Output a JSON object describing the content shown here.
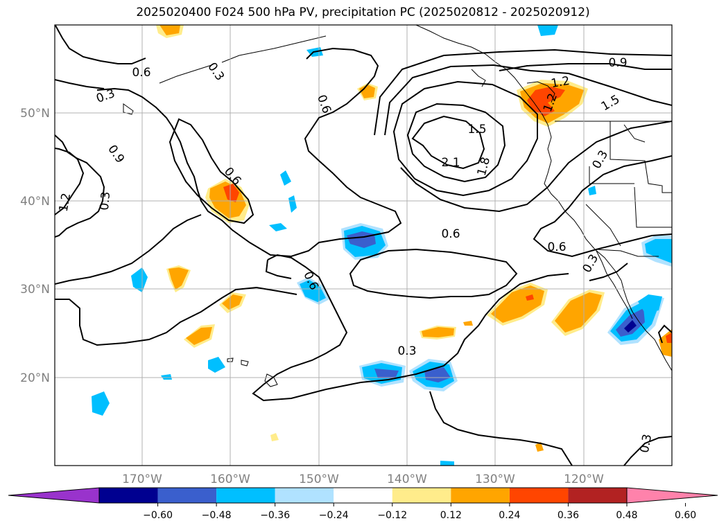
{
  "title": "2025020400 F024 500 hPa PV, precipitation PC (2025020812 - 2025020912)",
  "map": {
    "lon_ticks": [
      "170°W",
      "160°W",
      "150°W",
      "140°W",
      "130°W",
      "120°W"
    ],
    "lat_ticks": [
      "50°N",
      "40°N",
      "30°N",
      "20°N"
    ],
    "grid": true
  },
  "contour_labels": [
    "0.6",
    "0.3",
    "0.3",
    "0.6",
    "1.2",
    "0.9",
    "0.6",
    "0.3",
    "1.5",
    "2.1",
    "1.8",
    "0.9",
    "1.2",
    "1.2",
    "1.5",
    "0.3",
    "0.6",
    "0.6",
    "0.3",
    "0.6",
    "0.3",
    "0.3"
  ],
  "colorbar": {
    "colors": [
      "#9933cc",
      "#000090",
      "#3a5fcd",
      "#00bfff",
      "#b0e2ff",
      "#ffffff",
      "#ffec8b",
      "#ffa500",
      "#ff4500",
      "#b22222",
      "#ff82ab"
    ],
    "tick_labels": [
      "−0.60",
      "−0.48",
      "−0.36",
      "−0.24",
      "−0.12",
      "0.12",
      "0.24",
      "0.36",
      "0.48",
      "0.60"
    ]
  },
  "colors": {
    "contour": "#000000",
    "grid": "#b0b0b0",
    "tick_text": "#808080"
  }
}
